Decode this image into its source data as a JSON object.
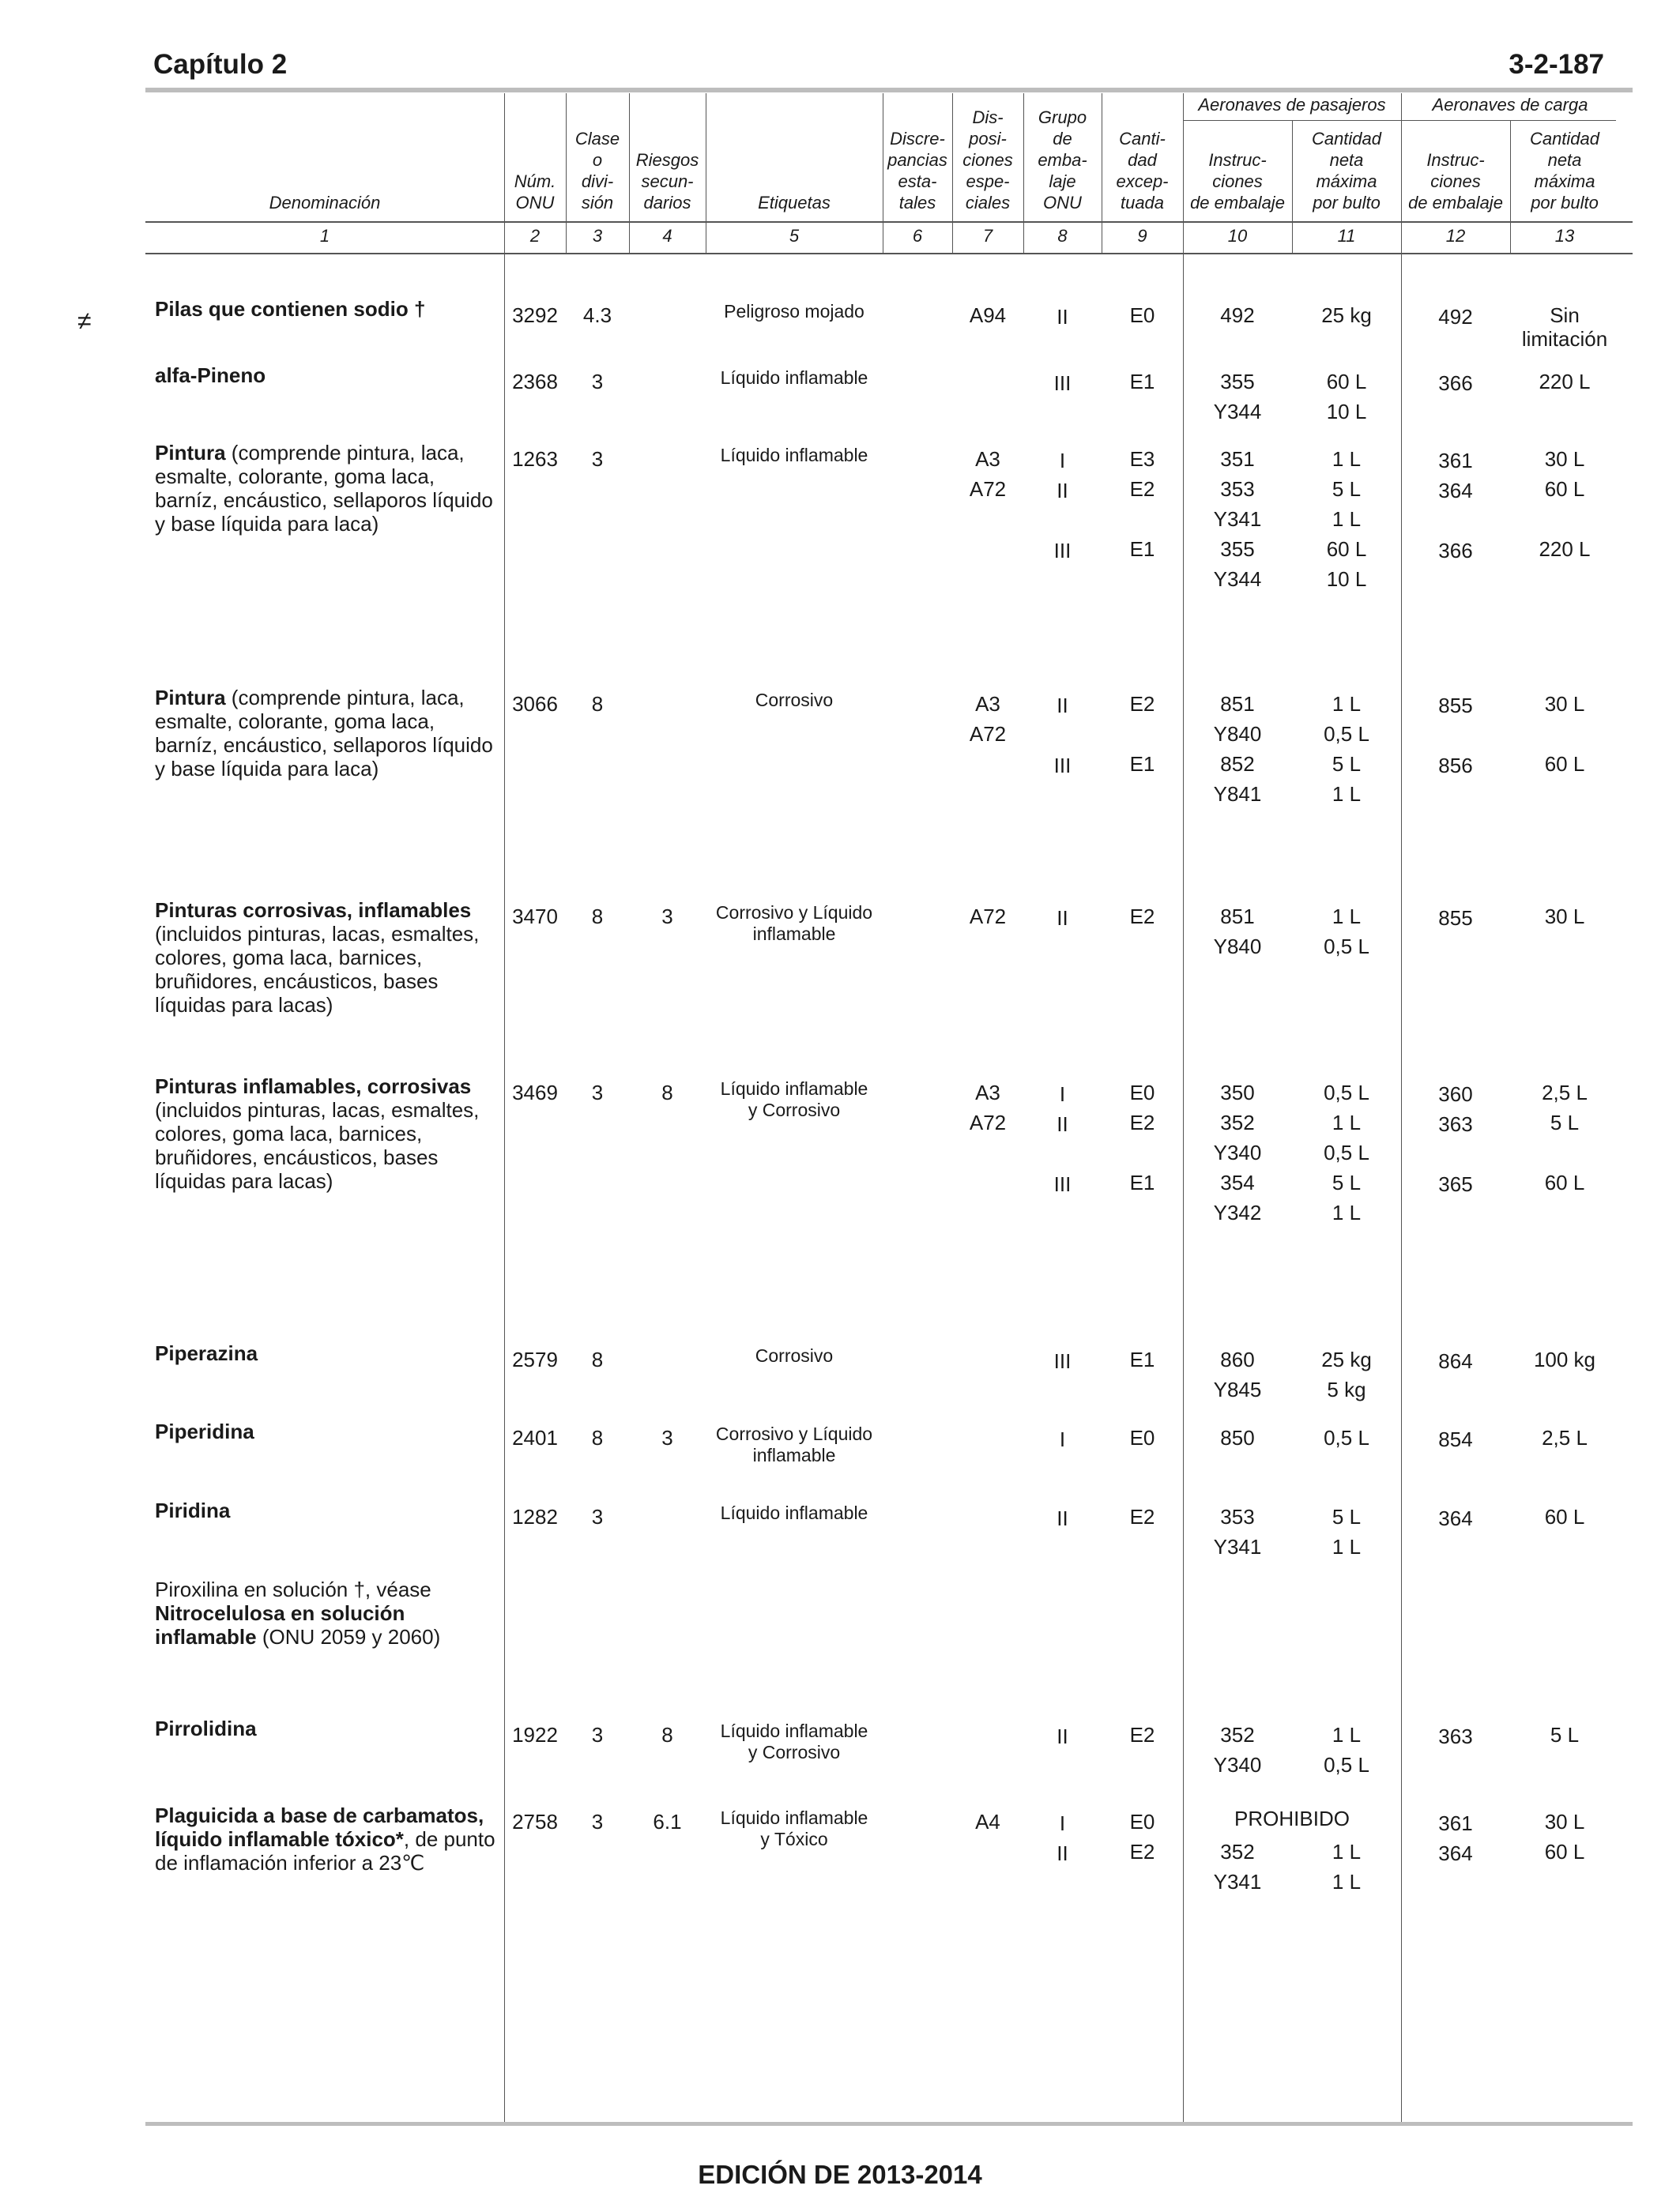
{
  "header": {
    "chapter": "Capítulo 2",
    "page": "3-2-187"
  },
  "footer": {
    "edition": "EDICIÓN DE 2013-2014"
  },
  "margin_mark": "≠",
  "columns": {
    "denominacion": "Denominación",
    "num_onu": "Núm.\nONU",
    "clase": "Clase\no\ndivi-\nsión",
    "riesgos": "Riesgos\nsecun-\ndarios",
    "etiquetas": "Etiquetas",
    "discrepancias": "Discre-\npancias\nesta-\ntales",
    "disposiciones": "Dis-\nposi-\nciones\nespe-\nciales",
    "grupo": "Grupo\nde\nemba-\nlaje\nONU",
    "cantidad_exceptuada": "Canti-\ndad\nexcep-\ntuada",
    "pasajeros_group": "Aeronaves de pasajeros",
    "carga_group": "Aeronaves de carga",
    "instrucciones_pas": "Instruc-\nciones\nde embalaje",
    "cantidad_pas": "Cantidad\nneta\nmáxima\npor bulto",
    "instrucciones_carga": "Instruc-\nciones\nde embalaje",
    "cantidad_carga": "Cantidad\nneta\nmáxima\npor bulto",
    "numbers": [
      "1",
      "2",
      "3",
      "4",
      "5",
      "6",
      "7",
      "8",
      "9",
      "10",
      "11",
      "12",
      "13"
    ]
  },
  "entries": [
    {
      "name_bold": "Pilas que contienen sodio †",
      "name_rest": "",
      "onu": "3292",
      "clase": "4.3",
      "riesgo": "",
      "etiqueta": "Peligroso mojado",
      "disp": [
        "A94"
      ],
      "lines": [
        {
          "grupo": "II",
          "exc": "E0",
          "ip": "492",
          "qp": "25 kg",
          "ic": "492",
          "qc": "Sin limitación"
        }
      ]
    },
    {
      "name_bold": "alfa-Pineno",
      "name_rest": "",
      "onu": "2368",
      "clase": "3",
      "riesgo": "",
      "etiqueta": "Líquido inflamable",
      "disp": [],
      "lines": [
        {
          "grupo": "III",
          "exc": "E1",
          "ip": "355",
          "qp": "60 L",
          "ic": "366",
          "qc": "220 L"
        },
        {
          "grupo": "",
          "exc": "",
          "ip": "Y344",
          "qp": "10 L",
          "ic": "",
          "qc": ""
        }
      ]
    },
    {
      "name_bold": "Pintura",
      "name_rest": " (comprende pintura, laca, esmalte, colorante, goma laca, barníz, encáustico, sellaporos líquido y base líquida para laca)",
      "onu": "1263",
      "clase": "3",
      "riesgo": "",
      "etiqueta": "Líquido inflamable",
      "disp": [
        "A3",
        "A72"
      ],
      "lines": [
        {
          "grupo": "I",
          "exc": "E3",
          "ip": "351",
          "qp": "1 L",
          "ic": "361",
          "qc": "30 L"
        },
        {
          "grupo": "II",
          "exc": "E2",
          "ip": "353",
          "qp": "5 L",
          "ic": "364",
          "qc": "60 L"
        },
        {
          "grupo": "",
          "exc": "",
          "ip": "Y341",
          "qp": "1 L",
          "ic": "",
          "qc": ""
        },
        {
          "grupo": "III",
          "exc": "E1",
          "ip": "355",
          "qp": "60 L",
          "ic": "366",
          "qc": "220 L"
        },
        {
          "grupo": "",
          "exc": "",
          "ip": "Y344",
          "qp": "10 L",
          "ic": "",
          "qc": ""
        }
      ]
    },
    {
      "name_bold": "Pintura",
      "name_rest": " (comprende pintura, laca, esmalte, colorante, goma laca, barníz, encáustico, sellaporos líquido y base líquida para laca)",
      "onu": "3066",
      "clase": "8",
      "riesgo": "",
      "etiqueta": "Corrosivo",
      "disp": [
        "A3",
        "A72"
      ],
      "lines": [
        {
          "grupo": "II",
          "exc": "E2",
          "ip": "851",
          "qp": "1 L",
          "ic": "855",
          "qc": "30 L"
        },
        {
          "grupo": "",
          "exc": "",
          "ip": "Y840",
          "qp": "0,5 L",
          "ic": "",
          "qc": ""
        },
        {
          "grupo": "III",
          "exc": "E1",
          "ip": "852",
          "qp": "5 L",
          "ic": "856",
          "qc": "60 L"
        },
        {
          "grupo": "",
          "exc": "",
          "ip": "Y841",
          "qp": "1 L",
          "ic": "",
          "qc": ""
        }
      ]
    },
    {
      "name_bold": "Pinturas corrosivas, inflamables",
      "name_rest": " (incluidos pinturas, lacas, esmaltes, colores, goma laca, barnices, bruñidores, encáusticos, bases líquidas para lacas)",
      "onu": "3470",
      "clase": "8",
      "riesgo": "3",
      "etiqueta": "Corrosivo y Líquido inflamable",
      "disp": [
        "A72"
      ],
      "lines": [
        {
          "grupo": "II",
          "exc": "E2",
          "ip": "851",
          "qp": "1 L",
          "ic": "855",
          "qc": "30 L"
        },
        {
          "grupo": "",
          "exc": "",
          "ip": "Y840",
          "qp": "0,5 L",
          "ic": "",
          "qc": ""
        }
      ]
    },
    {
      "name_bold": "Pinturas inflamables, corrosivas",
      "name_rest": " (incluidos pinturas, lacas, esmaltes, colores, goma laca, barnices, bruñidores, encáusticos, bases líquidas para lacas)",
      "onu": "3469",
      "clase": "3",
      "riesgo": "8",
      "etiqueta": "Líquido inflamable y Corrosivo",
      "disp": [
        "A3",
        "A72"
      ],
      "lines": [
        {
          "grupo": "I",
          "exc": "E0",
          "ip": "350",
          "qp": "0,5 L",
          "ic": "360",
          "qc": "2,5 L"
        },
        {
          "grupo": "II",
          "exc": "E2",
          "ip": "352",
          "qp": "1 L",
          "ic": "363",
          "qc": "5 L"
        },
        {
          "grupo": "",
          "exc": "",
          "ip": "Y340",
          "qp": "0,5 L",
          "ic": "",
          "qc": ""
        },
        {
          "grupo": "III",
          "exc": "E1",
          "ip": "354",
          "qp": "5 L",
          "ic": "365",
          "qc": "60 L"
        },
        {
          "grupo": "",
          "exc": "",
          "ip": "Y342",
          "qp": "1 L",
          "ic": "",
          "qc": ""
        }
      ]
    },
    {
      "name_bold": "Piperazina",
      "name_rest": "",
      "onu": "2579",
      "clase": "8",
      "riesgo": "",
      "etiqueta": "Corrosivo",
      "disp": [],
      "lines": [
        {
          "grupo": "III",
          "exc": "E1",
          "ip": "860",
          "qp": "25 kg",
          "ic": "864",
          "qc": "100 kg"
        },
        {
          "grupo": "",
          "exc": "",
          "ip": "Y845",
          "qp": "5 kg",
          "ic": "",
          "qc": ""
        }
      ]
    },
    {
      "name_bold": "Piperidina",
      "name_rest": "",
      "onu": "2401",
      "clase": "8",
      "riesgo": "3",
      "etiqueta": "Corrosivo y Líquido inflamable",
      "disp": [],
      "lines": [
        {
          "grupo": "I",
          "exc": "E0",
          "ip": "850",
          "qp": "0,5 L",
          "ic": "854",
          "qc": "2,5 L"
        }
      ]
    },
    {
      "name_bold": "Piridina",
      "name_rest": "",
      "onu": "1282",
      "clase": "3",
      "riesgo": "",
      "etiqueta": "Líquido inflamable",
      "disp": [],
      "lines": [
        {
          "grupo": "II",
          "exc": "E2",
          "ip": "353",
          "qp": "5 L",
          "ic": "364",
          "qc": "60 L"
        },
        {
          "grupo": "",
          "exc": "",
          "ip": "Y341",
          "qp": "1 L",
          "ic": "",
          "qc": ""
        }
      ]
    },
    {
      "name_pre": "Piroxilina en solución †, véase ",
      "name_bold": "Nitrocelulosa en solución inflamable",
      "name_rest": " (ONU 2059 y 2060)",
      "onu": "",
      "clase": "",
      "riesgo": "",
      "etiqueta": "",
      "disp": [],
      "lines": []
    },
    {
      "name_bold": "Pirrolidina",
      "name_rest": "",
      "onu": "1922",
      "clase": "3",
      "riesgo": "8",
      "etiqueta": "Líquido inflamable y Corrosivo",
      "disp": [],
      "lines": [
        {
          "grupo": "II",
          "exc": "E2",
          "ip": "352",
          "qp": "1 L",
          "ic": "363",
          "qc": "5 L"
        },
        {
          "grupo": "",
          "exc": "",
          "ip": "Y340",
          "qp": "0,5 L",
          "ic": "",
          "qc": ""
        }
      ]
    },
    {
      "name_bold": "Plaguicida a base de carbamatos, líquido inflamable tóxico*",
      "name_rest": ", de punto de inflamación inferior a 23℃",
      "onu": "2758",
      "clase": "3",
      "riesgo": "6.1",
      "etiqueta": "Líquido inflamable y Tóxico",
      "disp": [
        "A4"
      ],
      "prohibido": "PROHIBIDO",
      "lines": [
        {
          "grupo": "I",
          "exc": "E0",
          "ip": "",
          "qp": "",
          "ic": "361",
          "qc": "30 L"
        },
        {
          "grupo": "II",
          "exc": "E2",
          "ip": "352",
          "qp": "1 L",
          "ic": "364",
          "qc": "60 L"
        },
        {
          "grupo": "",
          "exc": "",
          "ip": "Y341",
          "qp": "1 L",
          "ic": "",
          "qc": ""
        }
      ]
    }
  ]
}
